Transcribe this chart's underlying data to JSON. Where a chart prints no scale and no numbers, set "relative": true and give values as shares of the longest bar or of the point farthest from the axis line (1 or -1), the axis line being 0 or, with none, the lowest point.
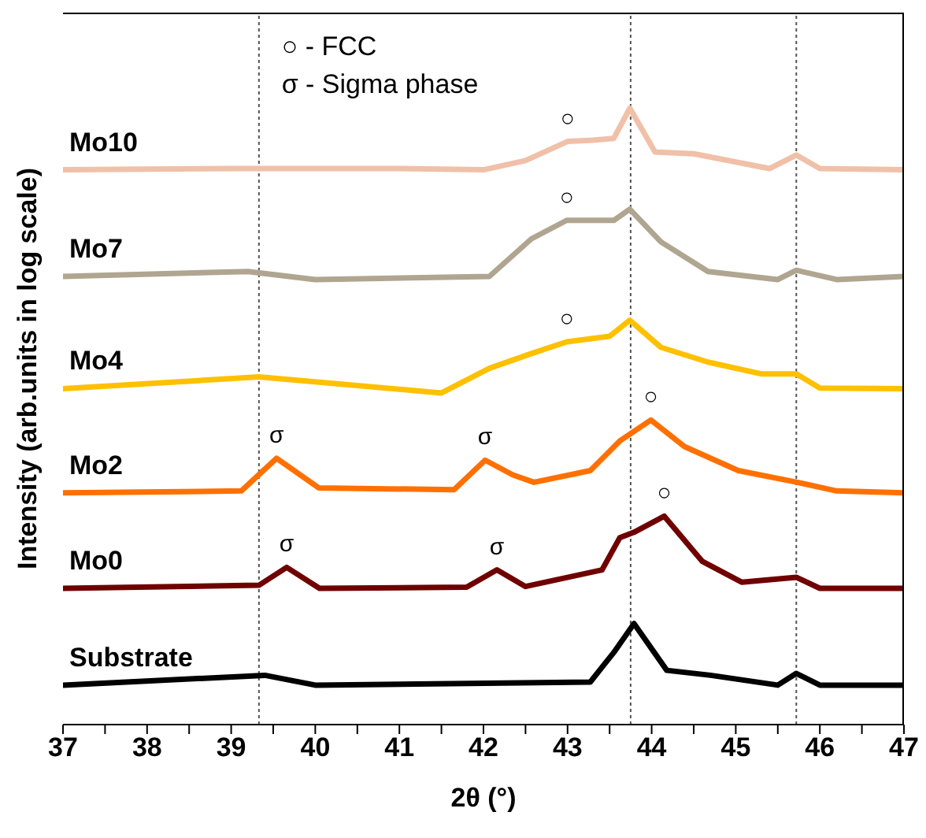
{
  "chart_data": {
    "type": "line",
    "relative": true,
    "xlabel": "2θ (°)",
    "ylabel": "Intensity (arb.units in log scale)",
    "xlim": [
      37,
      47
    ],
    "xticks": [
      37,
      {
        "value": 37.5,
        "label": null
      },
      38,
      {
        "value": 38.5,
        "label": null
      },
      39,
      {
        "value": 39.5,
        "label": null
      },
      40,
      {
        "value": 40.5,
        "label": null
      },
      41,
      {
        "value": 41.5,
        "label": null
      },
      42,
      {
        "value": 42.5,
        "label": null
      },
      43,
      {
        "value": 43.5,
        "label": null
      },
      44,
      {
        "value": 44.5,
        "label": null
      },
      45,
      {
        "value": 45.5,
        "label": null
      },
      46,
      {
        "value": 46.5,
        "label": null
      },
      47
    ],
    "marker": "none",
    "line_style": "solid",
    "ref_lines": [
      {
        "axis": "x",
        "value": 39.33,
        "color": "#555555",
        "line_style": "dotted"
      },
      {
        "axis": "x",
        "value": 43.75,
        "color": "#555555",
        "line_style": "dotted"
      },
      {
        "axis": "x",
        "value": 45.72,
        "color": "#555555",
        "line_style": "dotted"
      }
    ],
    "series": [
      {
        "name": "Mo10",
        "color": "#f0c0a8",
        "x": [
          37,
          39,
          41,
          42,
          42.5,
          43,
          43.3,
          43.55,
          43.74,
          44.04,
          44.5,
          45.4,
          45.72,
          46,
          47
        ],
        "values": [
          0.9,
          0.902,
          0.902,
          0.9,
          0.915,
          0.946,
          0.948,
          0.951,
          1.0,
          0.929,
          0.926,
          0.902,
          0.924,
          0.902,
          0.9
        ]
      },
      {
        "name": "Mo7",
        "color": "#b0a590",
        "x": [
          37,
          39.2,
          40,
          42.07,
          42.57,
          42.99,
          43.55,
          43.74,
          44.11,
          44.67,
          45.5,
          45.72,
          46.2,
          47
        ],
        "values": [
          0.727,
          0.735,
          0.722,
          0.727,
          0.788,
          0.818,
          0.818,
          0.836,
          0.783,
          0.735,
          0.722,
          0.737,
          0.722,
          0.727
        ]
      },
      {
        "name": "Mo4",
        "color": "#ffc000",
        "x": [
          37,
          39.33,
          41.5,
          42.07,
          42.57,
          42.99,
          43.5,
          43.74,
          44.11,
          44.67,
          45.3,
          45.72,
          46,
          47
        ],
        "values": [
          0.545,
          0.564,
          0.538,
          0.578,
          0.602,
          0.621,
          0.63,
          0.656,
          0.612,
          0.588,
          0.569,
          0.569,
          0.546,
          0.545
        ]
      },
      {
        "name": "Mo2",
        "color": "#ff7000",
        "x": [
          37,
          39.12,
          39.54,
          40.04,
          41.65,
          42.02,
          42.35,
          42.6,
          43.27,
          43.62,
          43.99,
          44.39,
          45.03,
          45.73,
          46.2,
          47
        ],
        "values": [
          0.376,
          0.379,
          0.432,
          0.384,
          0.381,
          0.429,
          0.405,
          0.393,
          0.412,
          0.46,
          0.494,
          0.451,
          0.412,
          0.393,
          0.379,
          0.376
        ]
      },
      {
        "name": "Mo0",
        "color": "#700000",
        "x": [
          37,
          39.33,
          39.66,
          40.05,
          41.8,
          42.16,
          42.5,
          43.41,
          43.62,
          43.79,
          44.15,
          44.6,
          45.07,
          45.72,
          46,
          47
        ],
        "values": [
          0.221,
          0.226,
          0.255,
          0.221,
          0.223,
          0.251,
          0.224,
          0.251,
          0.303,
          0.312,
          0.338,
          0.265,
          0.231,
          0.239,
          0.221,
          0.221
        ]
      },
      {
        "name": "Substrate",
        "color": "#000000",
        "x": [
          37,
          39.4,
          40,
          43.27,
          43.55,
          43.79,
          44.18,
          44.7,
          45.5,
          45.72,
          46,
          47
        ],
        "values": [
          0.064,
          0.08,
          0.064,
          0.069,
          0.117,
          0.164,
          0.088,
          0.08,
          0.064,
          0.083,
          0.064,
          0.064
        ]
      }
    ],
    "annotations": [
      "○ - FCC",
      "σ - Sigma phase",
      {
        "text": "○",
        "x": 43.0,
        "y": 0.946
      },
      {
        "text": "○",
        "x": 42.99,
        "y": 0.818
      },
      {
        "text": "○",
        "x": 42.99,
        "y": 0.621
      },
      {
        "text": "○",
        "x": 43.99,
        "y": 0.494
      },
      {
        "text": "○",
        "x": 44.15,
        "y": 0.338
      },
      {
        "text": "σ",
        "x": 39.54,
        "y": 0.432
      },
      {
        "text": "σ",
        "x": 42.02,
        "y": 0.429
      },
      {
        "text": "σ",
        "x": 39.66,
        "y": 0.255
      },
      {
        "text": "σ",
        "x": 42.16,
        "y": 0.251
      }
    ]
  }
}
